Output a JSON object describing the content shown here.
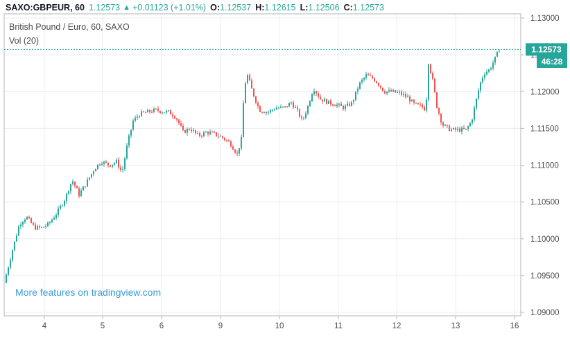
{
  "header": {
    "symbol": "SAXO:GBPEUR, 60",
    "last": "1.12573",
    "change": "+0.01123 (+1.01%)",
    "open_label": "O:",
    "open": "1.12537",
    "high_label": "H:",
    "high": "1.12615",
    "low_label": "L:",
    "low": "1.12506",
    "close_label": "C:",
    "close": "1.12573"
  },
  "legend": {
    "title": "British Pound / Euro, 60, SAXO",
    "volume": "Vol (20)"
  },
  "promo": "More features on tradingview.com",
  "price_label": "1.12573",
  "countdown": "46:28",
  "colors": {
    "up": "#26a69a",
    "down": "#ef5350",
    "grid": "#e8ecf1",
    "price_line": "#26a69a"
  },
  "chart_data": {
    "type": "candlestick",
    "y_ticks": [
      "1.13000",
      "1.12500",
      "1.12000",
      "1.11500",
      "1.11000",
      "1.10500",
      "1.10000",
      "1.09500",
      "1.09000"
    ],
    "ylim": [
      1.09,
      1.13
    ],
    "x_ticks": [
      "4",
      "5",
      "6",
      "9",
      "10",
      "11",
      "12",
      "13",
      "16"
    ],
    "grid": true,
    "series": [
      {
        "label": "4",
        "close": 1.1012
      },
      {
        "label": "5",
        "close": 1.1108
      },
      {
        "label": "6",
        "close": 1.1175
      },
      {
        "label": "9",
        "close": 1.114
      },
      {
        "label": "10",
        "close": 1.1178
      },
      {
        "label": "11",
        "close": 1.118
      },
      {
        "label": "12",
        "close": 1.1195
      },
      {
        "label": "13",
        "close": 1.115
      },
      {
        "label": "16",
        "close": 1.12573
      }
    ]
  }
}
